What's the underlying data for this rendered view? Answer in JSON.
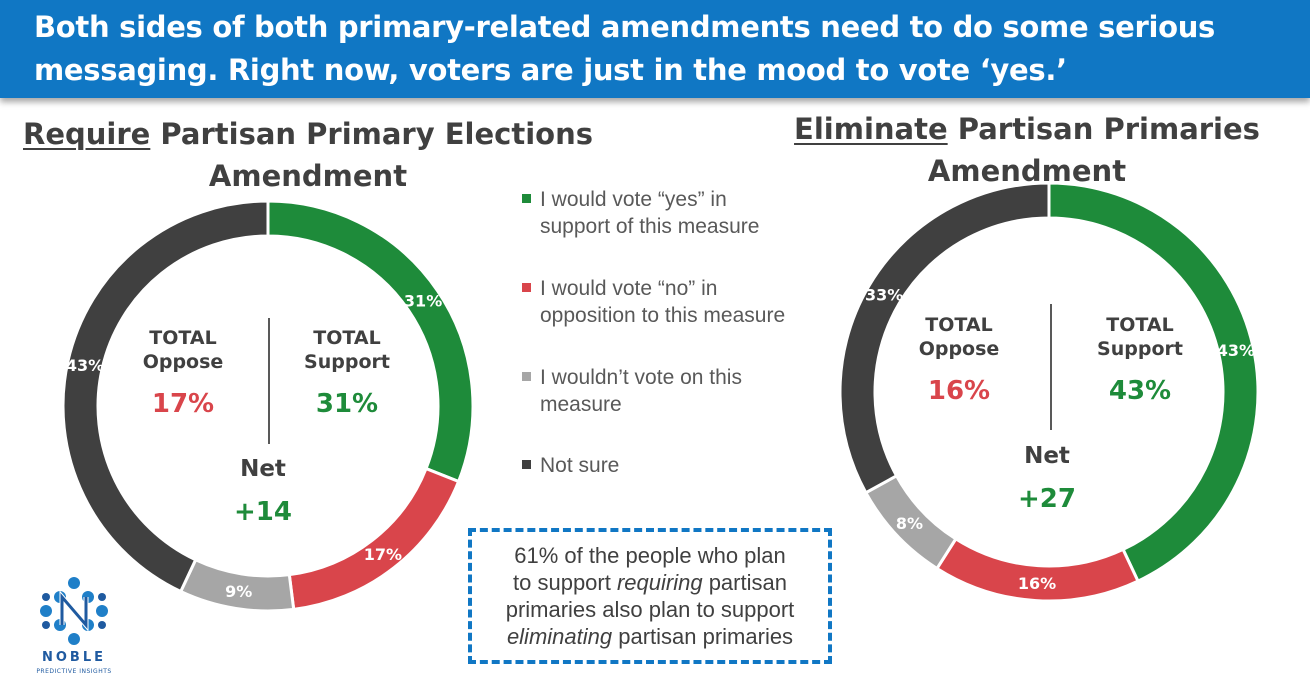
{
  "banner": {
    "line1": "Both sides of both primary-related amendments need to do some serious",
    "line2": "messaging. Right now, voters are just in the mood to vote ‘yes.’"
  },
  "colors": {
    "yes": "#1e8b3a",
    "no": "#d9454b",
    "wouldnt_vote": "#a6a6a6",
    "not_sure": "#404040",
    "banner": "#1077c4"
  },
  "legend": [
    {
      "label": "I would vote “yes” in support of this measure",
      "color": "#1e8b3a"
    },
    {
      "label": "I would vote “no” in opposition to this measure",
      "color": "#d9454b"
    },
    {
      "label": "I wouldn’t vote on this measure",
      "color": "#a6a6a6"
    },
    {
      "label": "Not sure",
      "color": "#404040"
    }
  ],
  "chart_data": [
    {
      "type": "pie",
      "title_underlined": "Require",
      "title_rest": " Partisan Primary Elections",
      "title_line2": "Amendment",
      "categories": [
        "I would vote “yes” in support of this measure",
        "I would vote “no” in opposition to this measure",
        "I wouldn’t vote on this measure",
        "Not sure"
      ],
      "values": [
        31,
        17,
        9,
        43
      ],
      "labels": [
        "31%",
        "17%",
        "9%",
        "43%"
      ],
      "legend_position": "right",
      "center": {
        "oppose_label_1": "TOTAL",
        "oppose_label_2": "Oppose",
        "oppose_value": "17%",
        "support_label_1": "TOTAL",
        "support_label_2": "Support",
        "support_value": "31%",
        "net_label": "Net",
        "net_value": "+14"
      }
    },
    {
      "type": "pie",
      "title_underlined": "Eliminate",
      "title_rest": " Partisan Primaries",
      "title_line2": "Amendment",
      "categories": [
        "I would vote “yes” in support of this measure",
        "I would vote “no” in opposition to this measure",
        "I wouldn’t vote on this measure",
        "Not sure"
      ],
      "values": [
        43,
        16,
        8,
        33
      ],
      "labels": [
        "43%",
        "16%",
        "8%",
        "33%"
      ],
      "legend_position": "left",
      "center": {
        "oppose_label_1": "TOTAL",
        "oppose_label_2": "Oppose",
        "oppose_value": "16%",
        "support_label_1": "TOTAL",
        "support_label_2": "Support",
        "support_value": "43%",
        "net_label": "Net",
        "net_value": "+27"
      }
    }
  ],
  "callout": {
    "line1": "61% of the people who plan",
    "line2_pre": "to support ",
    "line2_em": "requiring",
    "line2_post": " partisan",
    "line3": "primaries also plan to support",
    "line4_em": "eliminating",
    "line4_post": " partisan primaries"
  },
  "logo": {
    "word": "NOBLE",
    "sub": "PREDICTIVE INSIGHTS"
  }
}
